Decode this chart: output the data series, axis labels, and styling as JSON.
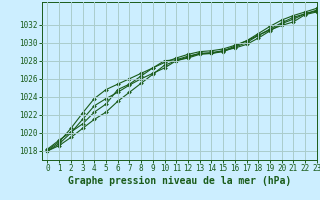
{
  "title": "Graphe pression niveau de la mer (hPa)",
  "background_color": "#cceeff",
  "grid_color": "#aacccc",
  "line_color": "#1a5c1a",
  "xlim": [
    -0.5,
    23
  ],
  "ylim": [
    1017.0,
    1034.5
  ],
  "yticks": [
    1018,
    1020,
    1022,
    1024,
    1026,
    1028,
    1030,
    1032
  ],
  "xtick_labels": [
    "0",
    "1",
    "2",
    "3",
    "4",
    "5",
    "6",
    "7",
    "8",
    "9",
    "10",
    "11",
    "12",
    "13",
    "14",
    "15",
    "16",
    "17",
    "18",
    "19",
    "20",
    "21",
    "22",
    "23"
  ],
  "series": [
    [
      1018.2,
      1019.2,
      1020.1,
      1021.0,
      1022.3,
      1023.2,
      1024.8,
      1025.4,
      1026.3,
      1027.2,
      1028.0,
      1028.1,
      1028.5,
      1028.8,
      1028.9,
      1029.1,
      1029.4,
      1029.8,
      1030.5,
      1031.3,
      1032.1,
      1032.6,
      1033.2,
      1033.5
    ],
    [
      1018.0,
      1018.8,
      1020.0,
      1021.5,
      1023.0,
      1023.8,
      1024.5,
      1025.3,
      1026.0,
      1026.6,
      1027.2,
      1028.0,
      1028.4,
      1028.8,
      1028.8,
      1029.0,
      1029.5,
      1030.0,
      1030.8,
      1031.5,
      1032.2,
      1032.8,
      1033.2,
      1033.6
    ],
    [
      1018.1,
      1019.0,
      1020.5,
      1022.2,
      1023.8,
      1024.8,
      1025.4,
      1026.0,
      1026.6,
      1027.2,
      1027.8,
      1028.3,
      1028.7,
      1029.0,
      1029.1,
      1029.3,
      1029.7,
      1030.2,
      1030.8,
      1031.4,
      1031.9,
      1032.3,
      1033.1,
      1033.4
    ],
    [
      1018.0,
      1018.6,
      1019.5,
      1020.5,
      1021.5,
      1022.3,
      1023.5,
      1024.5,
      1025.5,
      1026.5,
      1027.5,
      1028.0,
      1028.3,
      1028.7,
      1028.8,
      1029.1,
      1029.6,
      1030.2,
      1031.0,
      1031.8,
      1032.5,
      1033.0,
      1033.4,
      1033.8
    ]
  ],
  "marker": "D",
  "marker_size": 2.0,
  "title_fontsize": 7,
  "tick_fontsize": 5.5,
  "linewidth": 0.8
}
